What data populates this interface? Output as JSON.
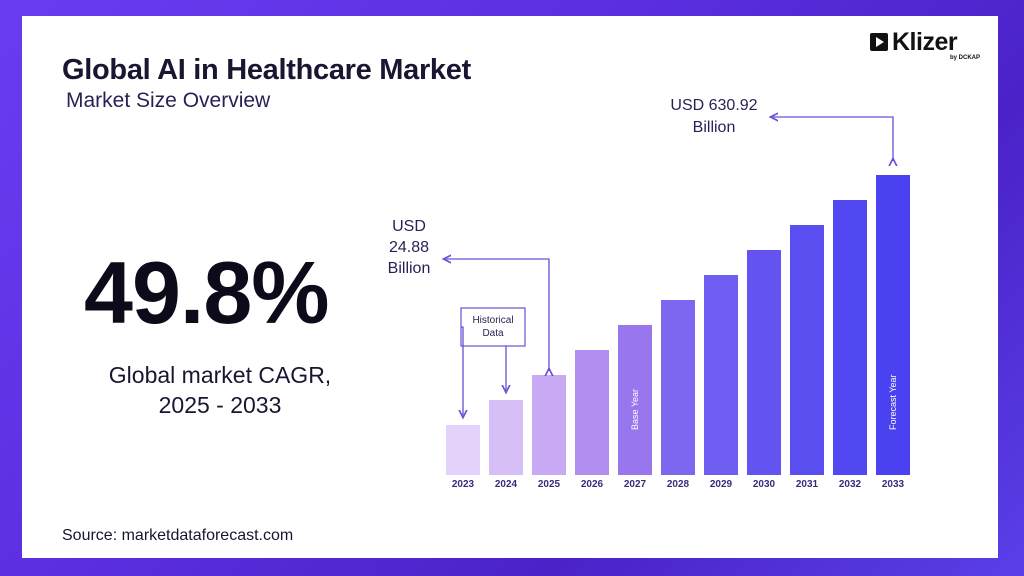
{
  "header": {
    "title": "Global AI in Healthcare Market",
    "subtitle": "Market Size Overview"
  },
  "logo": {
    "name": "Klizer",
    "byline": "by DCKAP"
  },
  "highlight": {
    "value": "49.8%",
    "label_line1": "Global market CAGR,",
    "label_line2": "2025 - 2033"
  },
  "source": "Source: marketdataforecast.com",
  "chart_data": {
    "type": "bar",
    "categories": [
      "2023",
      "2024",
      "2025",
      "2026",
      "2027",
      "2028",
      "2029",
      "2030",
      "2031",
      "2032",
      "2033"
    ],
    "values": [
      1.0,
      1.5,
      2.0,
      2.5,
      3.0,
      3.5,
      4.0,
      4.5,
      5.0,
      5.5,
      6.0
    ],
    "value_note": "Relative bar heights (values not labeled on axis)",
    "title": "",
    "xlabel": "",
    "ylabel": "",
    "colors": [
      "#e3d3fb",
      "#d6bff7",
      "#c7a9f4",
      "#b18ef0",
      "#9876ee",
      "#7d67f0",
      "#6f5ef1",
      "#6354f1",
      "#5a4ef1",
      "#5148f1",
      "#4a42f0"
    ],
    "bar_labels": {
      "2027": "Base Year",
      "2033": "Forecast Year"
    },
    "annotations": [
      {
        "text_lines": [
          "USD",
          "24.88",
          "Billion"
        ],
        "target": "2025"
      },
      {
        "text_lines": [
          "USD 630.92",
          "Billion"
        ],
        "target": "2033"
      },
      {
        "text_lines": [
          "Historical",
          "Data"
        ],
        "targets": [
          "2023",
          "2024"
        ]
      }
    ]
  }
}
